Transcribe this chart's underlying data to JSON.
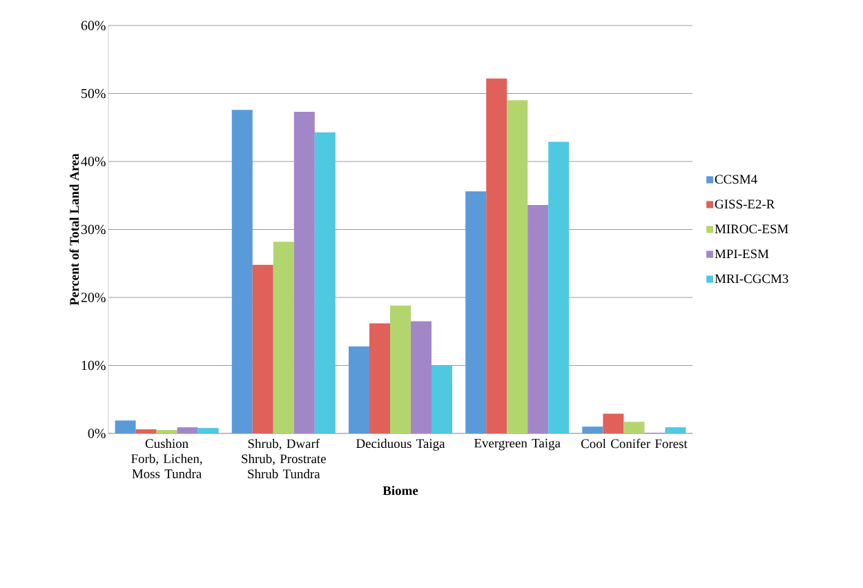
{
  "chart_data": {
    "type": "bar",
    "xlabel": "Biome",
    "ylabel": "Percent of Total Land Area",
    "categories": [
      "Cushion Forb, Lichen, Moss Tundra",
      "Shrub, Dwarf Shrub, Prostrate Shrub Tundra",
      "Deciduous Taiga",
      "Evergreen Taiga",
      "Cool Conifer Forest"
    ],
    "series": [
      {
        "name": "CCSM4",
        "color": "#5a9ad8",
        "values": [
          1.9,
          47.6,
          12.8,
          35.6,
          1.0
        ]
      },
      {
        "name": "GISS-E2-R",
        "color": "#e0615a",
        "values": [
          0.6,
          24.8,
          16.2,
          52.2,
          2.9
        ]
      },
      {
        "name": "MIROC-ESM",
        "color": "#b3d56e",
        "values": [
          0.5,
          28.2,
          18.8,
          49.0,
          1.7
        ]
      },
      {
        "name": "MPI-ESM",
        "color": "#a287c8",
        "values": [
          0.9,
          47.3,
          16.5,
          33.6,
          0.1
        ]
      },
      {
        "name": "MRI-CGCM3",
        "color": "#4fc8e2",
        "values": [
          0.8,
          44.3,
          10.0,
          42.9,
          0.9
        ]
      }
    ],
    "ylim": [
      0,
      60
    ],
    "yticks": [
      {
        "value": 0,
        "label": "0%"
      },
      {
        "value": 10,
        "label": "10%"
      },
      {
        "value": 20,
        "label": "20%"
      },
      {
        "value": 30,
        "label": "30%"
      },
      {
        "value": 40,
        "label": "40%"
      },
      {
        "value": 50,
        "label": "50%"
      },
      {
        "value": 60,
        "label": "60%"
      }
    ],
    "grid": "y",
    "legend": "right"
  }
}
